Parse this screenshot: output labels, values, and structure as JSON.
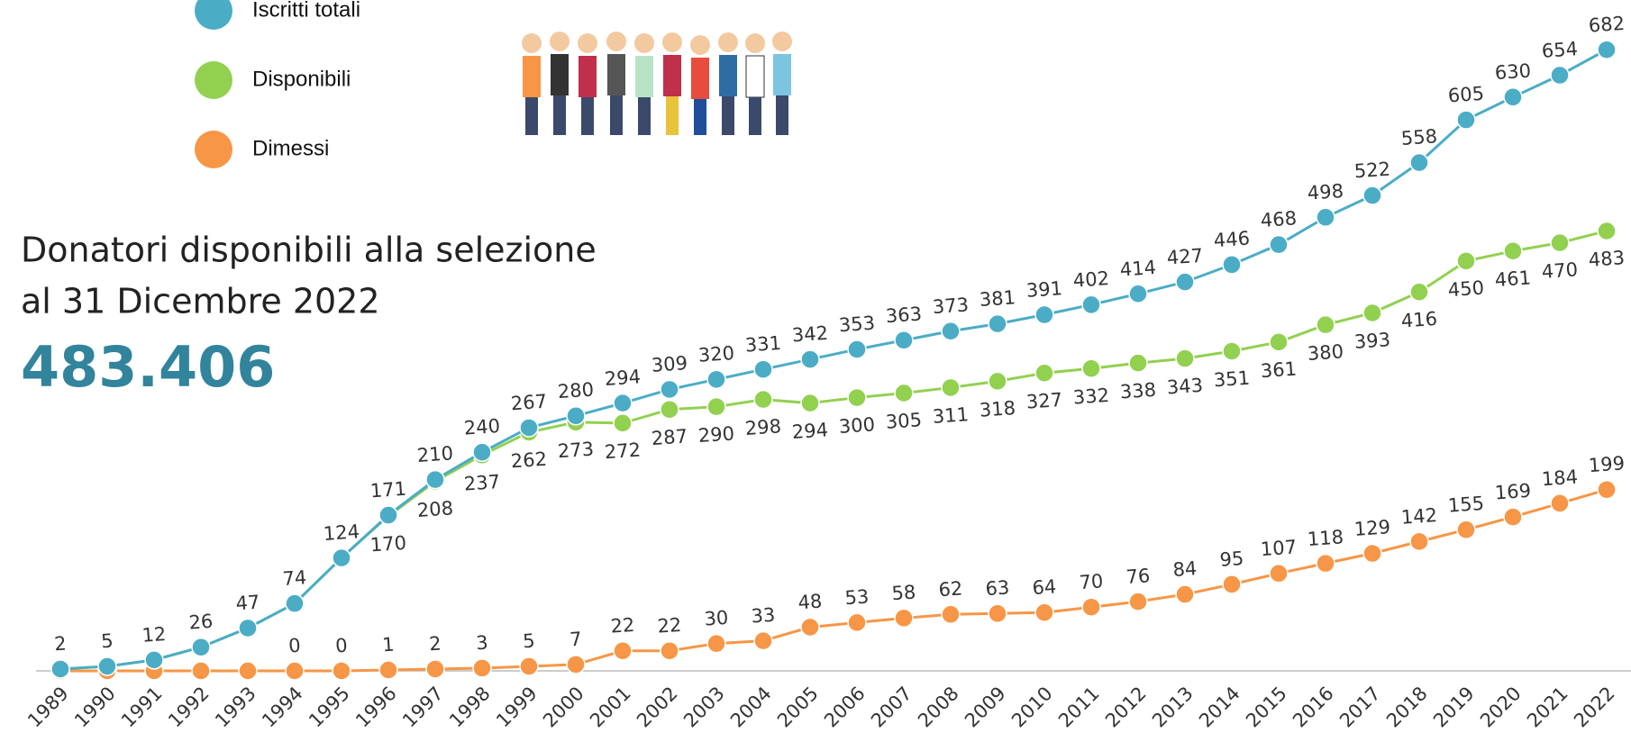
{
  "chart_data": {
    "type": "line",
    "title": "Donatori disponibili alla selezione",
    "subtitle": "al 31 Dicembre 2022",
    "annotation": "483.406",
    "categories": [
      "1989",
      "1990",
      "1991",
      "1992",
      "1993",
      "1994",
      "1995",
      "1996",
      "1997",
      "1998",
      "1999",
      "2000",
      "2001",
      "2002",
      "2003",
      "2004",
      "2005",
      "2006",
      "2007",
      "2008",
      "2009",
      "2010",
      "2011",
      "2012",
      "2013",
      "2014",
      "2015",
      "2016",
      "2017",
      "2018",
      "2019",
      "2020",
      "2021",
      "2022"
    ],
    "ylim": [
      0,
      700
    ],
    "series": [
      {
        "name": "Iscritti totali",
        "color": "#4bacc6",
        "values": [
          2,
          5,
          12,
          26,
          47,
          74,
          124,
          171,
          210,
          240,
          267,
          280,
          294,
          309,
          320,
          331,
          342,
          353,
          363,
          373,
          381,
          391,
          402,
          414,
          427,
          446,
          468,
          498,
          522,
          558,
          605,
          630,
          654,
          682
        ]
      },
      {
        "name": "Disponibili",
        "color": "#92d050",
        "values": [
          2,
          5,
          12,
          26,
          47,
          74,
          124,
          170,
          208,
          237,
          262,
          273,
          272,
          287,
          290,
          298,
          294,
          300,
          305,
          311,
          318,
          327,
          332,
          338,
          343,
          351,
          361,
          380,
          393,
          416,
          450,
          461,
          470,
          483
        ],
        "value_labels": [
          null,
          null,
          null,
          null,
          null,
          null,
          null,
          "170",
          "208",
          "237",
          "262",
          "273",
          "272",
          "287",
          "290",
          "298",
          "294",
          "300",
          "305",
          "311",
          "318",
          "327",
          "332",
          "338",
          "343",
          "351",
          "361",
          "380",
          "393",
          "416",
          "450",
          "461",
          "470",
          "483"
        ]
      },
      {
        "name": "Dimessi",
        "color": "#f79646",
        "values": [
          0,
          0,
          0,
          0,
          0,
          0,
          0,
          1,
          2,
          3,
          5,
          7,
          22,
          22,
          30,
          33,
          48,
          53,
          58,
          62,
          63,
          64,
          70,
          76,
          84,
          95,
          107,
          118,
          129,
          142,
          155,
          169,
          184,
          199
        ],
        "value_labels": [
          null,
          null,
          null,
          null,
          null,
          "0",
          "0",
          "1",
          "2",
          "3",
          "5",
          "7",
          "22",
          "22",
          "30",
          "33",
          "48",
          "53",
          "58",
          "62",
          "63",
          "64",
          "70",
          "76",
          "84",
          "95",
          "107",
          "118",
          "129",
          "142",
          "155",
          "169",
          "184",
          "199"
        ]
      }
    ]
  }
}
